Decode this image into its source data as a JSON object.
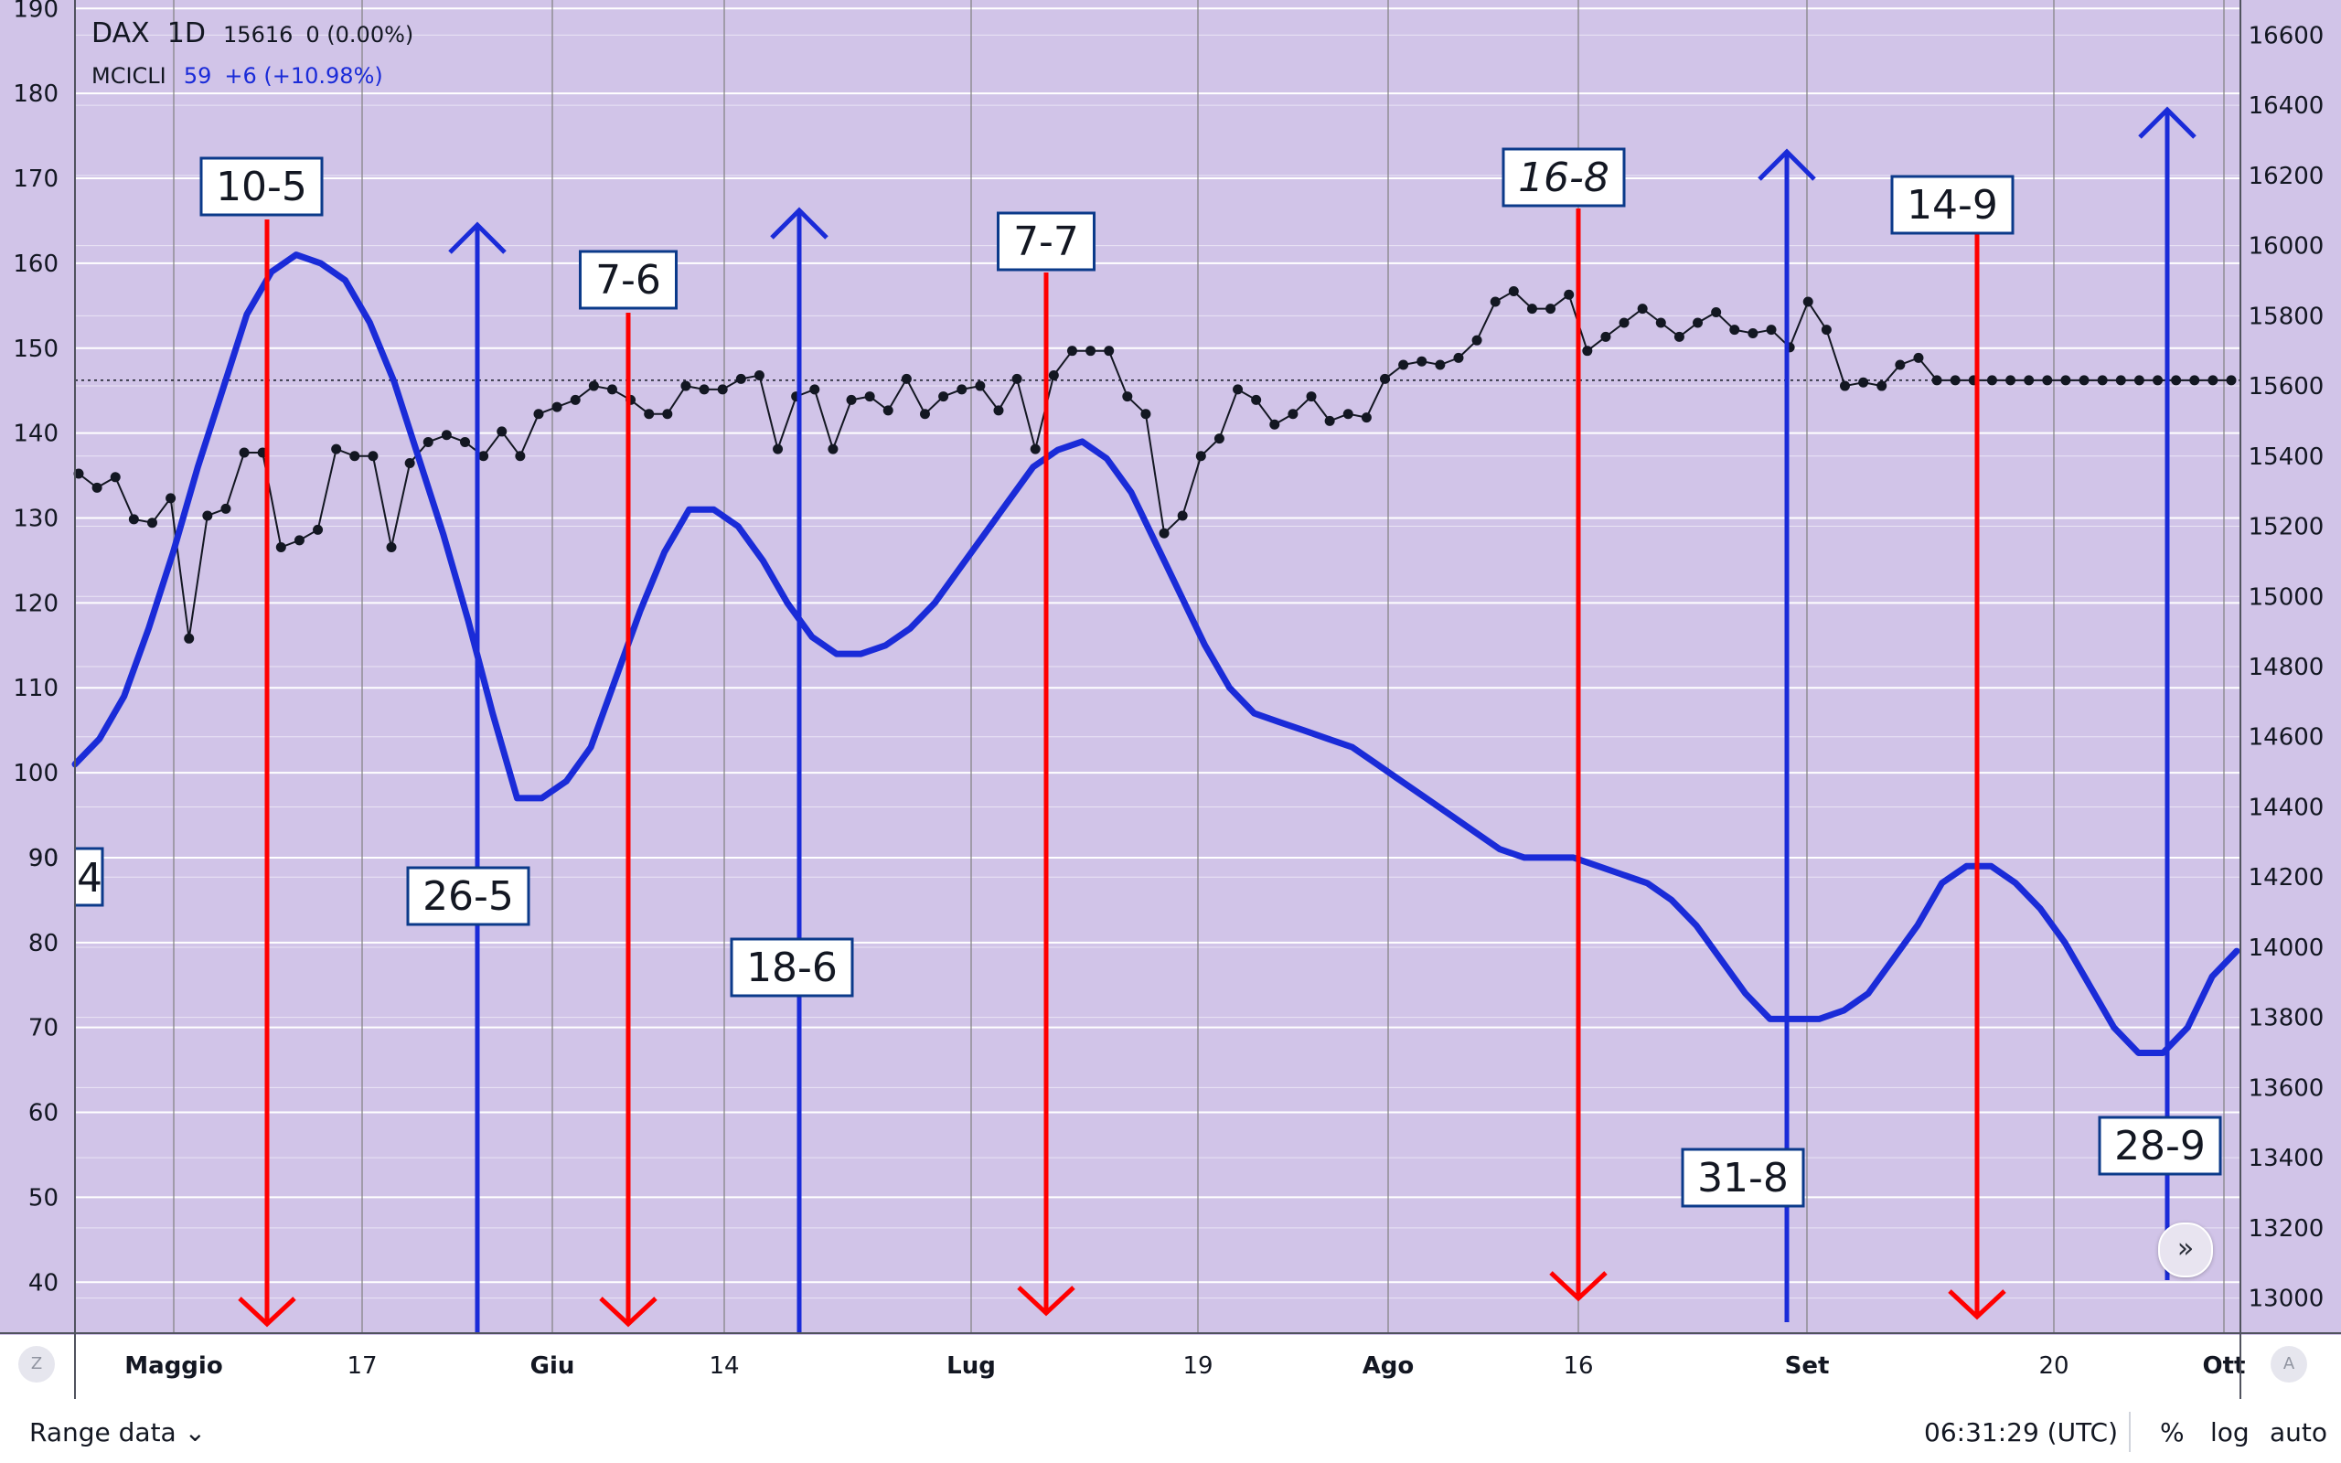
{
  "legend": {
    "symbol": "DAX",
    "timeframe": "1D",
    "last_value": "15616",
    "change": "0 (0.00%)",
    "indicator_name": "MCICLI",
    "indicator_value": "59",
    "indicator_change": "+6 (+10.98%)"
  },
  "bottom_bar": {
    "range_label": "Range data",
    "clock": "06:31:29 (UTC)",
    "percent_label": "%",
    "log_label": "log",
    "auto_label": "auto"
  },
  "controls": {
    "zoom_glyph": "Z",
    "auto_glyph": "A",
    "scroll_glyph": "»"
  },
  "colors": {
    "background": "#d1c4e8",
    "grid": "#ffffff",
    "price": "#131722",
    "oscillator": "#1a2bd8",
    "top_marker": "#ff0000",
    "bottom_marker": "#1a2bd8"
  },
  "chart_data": {
    "type": "line",
    "left_axis": {
      "ylim": [
        34,
        191
      ],
      "ticks": [
        40,
        50,
        60,
        70,
        80,
        90,
        100,
        110,
        120,
        130,
        140,
        150,
        160,
        170,
        180,
        190
      ]
    },
    "right_axis": {
      "ylim": [
        12900,
        16700
      ],
      "ticks": [
        13000,
        13200,
        13400,
        13600,
        13800,
        14000,
        14200,
        14400,
        14600,
        14800,
        15000,
        15200,
        15400,
        15600,
        15800,
        16000,
        16200,
        16400,
        16600
      ]
    },
    "x_axis": {
      "categories": [
        "Maggio",
        "17",
        "Giu",
        "14",
        "Lug",
        "19",
        "Ago",
        "16",
        "Set",
        "20",
        "Ott"
      ],
      "month_ticks": [
        "Maggio",
        "Giu",
        "Lug",
        "Ago",
        "Set",
        "Ott"
      ]
    },
    "series": [
      {
        "name": "DAX",
        "axis": "right",
        "values": [
          15350,
          15310,
          15340,
          15220,
          15210,
          15280,
          14880,
          15230,
          15250,
          15410,
          15410,
          15140,
          15160,
          15190,
          15420,
          15400,
          15400,
          15140,
          15380,
          15440,
          15460,
          15440,
          15400,
          15470,
          15400,
          15520,
          15540,
          15560,
          15600,
          15590,
          15560,
          15520,
          15520,
          15600,
          15590,
          15590,
          15620,
          15630,
          15420,
          15570,
          15590,
          15420,
          15560,
          15570,
          15530,
          15620,
          15520,
          15570,
          15590,
          15600,
          15530,
          15620,
          15420,
          15630,
          15700,
          15700,
          15700,
          15570,
          15520,
          15180,
          15230,
          15400,
          15450,
          15590,
          15560,
          15490,
          15520,
          15570,
          15500,
          15520,
          15510,
          15620,
          15660,
          15670,
          15660,
          15680,
          15730,
          15840,
          15870,
          15820,
          15820,
          15860,
          15700,
          15740,
          15780,
          15820,
          15780,
          15740,
          15780,
          15810,
          15760,
          15750,
          15760,
          15710,
          15840,
          15760,
          15600,
          15610,
          15600,
          15660,
          15680,
          15616,
          15616,
          15616,
          15616,
          15616,
          15616,
          15616,
          15616,
          15616,
          15616,
          15616,
          15616,
          15616,
          15616,
          15616,
          15616,
          15616
        ]
      },
      {
        "name": "MCICLI",
        "axis": "left",
        "values": [
          101,
          104,
          109,
          117,
          126,
          136,
          145,
          154,
          159,
          161,
          160,
          158,
          153,
          146,
          137,
          128,
          118,
          107,
          97,
          97,
          99,
          103,
          111,
          119,
          126,
          131,
          131,
          129,
          125,
          120,
          116,
          114,
          114,
          115,
          117,
          120,
          124,
          128,
          132,
          136,
          138,
          139,
          137,
          133,
          127,
          121,
          115,
          110,
          107,
          106,
          105,
          104,
          103,
          101,
          99,
          97,
          95,
          93,
          91,
          90,
          90,
          90,
          89,
          88,
          87,
          85,
          82,
          78,
          74,
          71,
          71,
          71,
          72,
          74,
          78,
          82,
          87,
          89,
          89,
          87,
          84,
          80,
          75,
          70,
          67,
          67,
          70,
          76,
          79
        ]
      }
    ],
    "cycle_markers": {
      "tops": [
        "10-5",
        "7-6",
        "7-7",
        "16-8",
        "14-9"
      ],
      "bottoms": [
        "26-5",
        "18-6",
        "31-8",
        "28-9"
      ],
      "clipped_label": "4"
    },
    "reference_line": {
      "axis": "right",
      "value": 15616,
      "style": "dotted"
    },
    "grid": true
  }
}
